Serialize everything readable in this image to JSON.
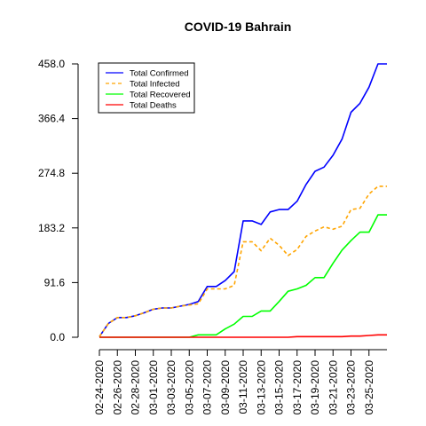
{
  "chart_data": {
    "type": "line",
    "title": "COVID-19 Bahrain",
    "xlabel": "",
    "ylabel": "",
    "y_ticks": [
      "0.0",
      "91.6",
      "183.2",
      "274.8",
      "366.4",
      "458.0"
    ],
    "x_ticks": [
      "02-24-2020",
      "02-26-2020",
      "02-28-2020",
      "03-01-2020",
      "03-03-2020",
      "03-05-2020",
      "03-07-2020",
      "03-09-2020",
      "03-11-2020",
      "03-13-2020",
      "03-15-2020",
      "03-17-2020",
      "03-19-2020",
      "03-21-2020",
      "03-23-2020",
      "03-25-2020"
    ],
    "x": [
      "02-24-2020",
      "02-25-2020",
      "02-26-2020",
      "02-27-2020",
      "02-28-2020",
      "02-29-2020",
      "03-01-2020",
      "03-02-2020",
      "03-03-2020",
      "03-04-2020",
      "03-05-2020",
      "03-06-2020",
      "03-07-2020",
      "03-08-2020",
      "03-09-2020",
      "03-10-2020",
      "03-11-2020",
      "03-12-2020",
      "03-13-2020",
      "03-14-2020",
      "03-15-2020",
      "03-16-2020",
      "03-17-2020",
      "03-18-2020",
      "03-19-2020",
      "03-20-2020",
      "03-21-2020",
      "03-22-2020",
      "03-23-2020",
      "03-24-2020",
      "03-25-2020",
      "03-26-2020",
      "03-27-2020"
    ],
    "ylim": [
      0,
      458.0
    ],
    "legend_position": "top-left",
    "series": [
      {
        "name": "Total Confirmed",
        "color": "#0000ff",
        "dash": "solid",
        "values": [
          1,
          23,
          33,
          33,
          36,
          41,
          47,
          49,
          49,
          52,
          55,
          60,
          85,
          85,
          95,
          110,
          195,
          195,
          189,
          210,
          214,
          214,
          228,
          256,
          278,
          285,
          305,
          332,
          377,
          392,
          419,
          458,
          458
        ]
      },
      {
        "name": "Total Infected",
        "color": "#ffa500",
        "dash": "dashed",
        "values": [
          1,
          23,
          33,
          33,
          36,
          41,
          47,
          49,
          49,
          52,
          54,
          56,
          81,
          81,
          81,
          87,
          160,
          160,
          145,
          166,
          154,
          137,
          147,
          169,
          178,
          185,
          181,
          186,
          214,
          216,
          240,
          253,
          253
        ]
      },
      {
        "name": "Total Recovered",
        "color": "#00ff00",
        "dash": "solid",
        "values": [
          0,
          0,
          0,
          0,
          0,
          0,
          0,
          0,
          0,
          0,
          0,
          4,
          4,
          4,
          14,
          22,
          35,
          35,
          44,
          44,
          60,
          77,
          81,
          87,
          100,
          100,
          124,
          146,
          162,
          176,
          176,
          205,
          205
        ]
      },
      {
        "name": "Total Deaths",
        "color": "#ff0000",
        "dash": "solid",
        "values": [
          0,
          0,
          0,
          0,
          0,
          0,
          0,
          0,
          0,
          0,
          0,
          0,
          0,
          0,
          0,
          0,
          0,
          0,
          0,
          0,
          0,
          0,
          1,
          1,
          1,
          1,
          1,
          1,
          2,
          2,
          3,
          4,
          4
        ]
      }
    ]
  }
}
